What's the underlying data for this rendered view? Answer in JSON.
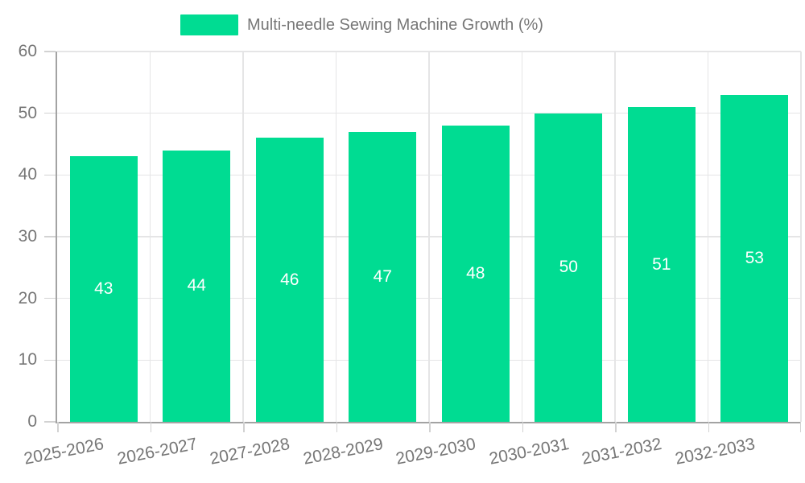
{
  "chart_data": {
    "type": "bar",
    "title": "",
    "xlabel": "",
    "ylabel": "",
    "categories": [
      "2025-2026",
      "2026-2027",
      "2027-2028",
      "2028-2029",
      "2029-2030",
      "2030-2031",
      "2031-2032",
      "2032-2033"
    ],
    "values": [
      43,
      44,
      46,
      47,
      48,
      50,
      51,
      53
    ],
    "series_name": "Multi-needle Sewing Machine Growth (%)",
    "legend": [
      "Multi-needle Sewing Machine Growth (%)"
    ],
    "legend_position": "top",
    "ylim": [
      0,
      60
    ],
    "yticks": [
      0,
      10,
      20,
      30,
      40,
      50,
      60
    ],
    "grid": true,
    "bar_labels_shown": true,
    "x_label_rotation_deg": -11,
    "colors": {
      "bar": "#00DC92",
      "bar_value_label": "#FFFFFF",
      "axis_text": "#767676",
      "axis_line": "#A3A3A3",
      "gridline": "#E5E5E6",
      "tick_mark": "#D2D2D2",
      "legend_text": "#777777",
      "background": "#FFFFFF"
    }
  }
}
